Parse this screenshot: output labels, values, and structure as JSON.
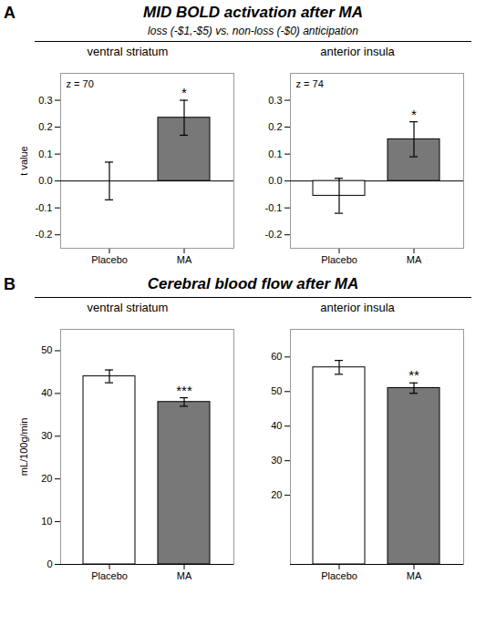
{
  "chart_data": [
    {
      "type": "bar",
      "title": "ventral striatum",
      "ylabel": "t value",
      "categories": [
        "Placebo",
        "MA"
      ],
      "values": [
        0.0,
        0.235
      ],
      "errors": [
        0.07,
        0.065
      ],
      "colors": [
        "white",
        "#787878"
      ],
      "significance": [
        null,
        "*"
      ],
      "ylim": [
        -0.25,
        0.4
      ],
      "yticks": [
        -0.2,
        -0.1,
        {
          "value": 0.0,
          "label": "0.0"
        },
        0.1,
        0.2,
        0.3
      ],
      "annotations": [
        {
          "kind": "panel_label",
          "text": "A"
        },
        {
          "kind": "heading",
          "text": "MID BOLD activation after MA"
        },
        {
          "kind": "subheading",
          "text": "loss (-$1,-$5) vs. non-loss (-$0) anticipation"
        },
        {
          "kind": "inset_label",
          "text": "z = 70"
        }
      ]
    },
    {
      "type": "bar",
      "title": "anterior insula",
      "categories": [
        "Placebo",
        "MA"
      ],
      "values": [
        -0.055,
        0.155
      ],
      "errors": [
        0.065,
        0.065
      ],
      "colors": [
        "white",
        "#787878"
      ],
      "significance": [
        null,
        "*"
      ],
      "ylim": [
        -0.25,
        0.4
      ],
      "yticks": [
        -0.2,
        -0.1,
        {
          "value": 0.0,
          "label": "0.0"
        },
        0.1,
        0.2,
        0.3
      ],
      "annotations": [
        {
          "kind": "inset_label",
          "text": "z = 74"
        }
      ]
    },
    {
      "type": "bar",
      "title": "ventral striatum",
      "ylabel": "mL/100g/min",
      "categories": [
        "Placebo",
        "MA"
      ],
      "values": [
        44.0,
        38.0
      ],
      "errors": [
        1.5,
        1.0
      ],
      "colors": [
        "white",
        "#787878"
      ],
      "significance": [
        null,
        "***"
      ],
      "ylim": [
        0,
        55
      ],
      "yticks": [
        0,
        10,
        20,
        30,
        40,
        50
      ],
      "annotations": [
        {
          "kind": "panel_label",
          "text": "B"
        },
        {
          "kind": "heading",
          "text": "Cerebral blood flow after MA"
        }
      ]
    },
    {
      "type": "bar",
      "title": "anterior insula",
      "categories": [
        "Placebo",
        "MA"
      ],
      "values": [
        57.0,
        51.0
      ],
      "errors": [
        2.0,
        1.5
      ],
      "colors": [
        "white",
        "#787878"
      ],
      "significance": [
        null,
        "**"
      ],
      "ylim": [
        0,
        68
      ],
      "yticks": [
        20,
        30,
        40,
        50,
        60
      ]
    }
  ]
}
